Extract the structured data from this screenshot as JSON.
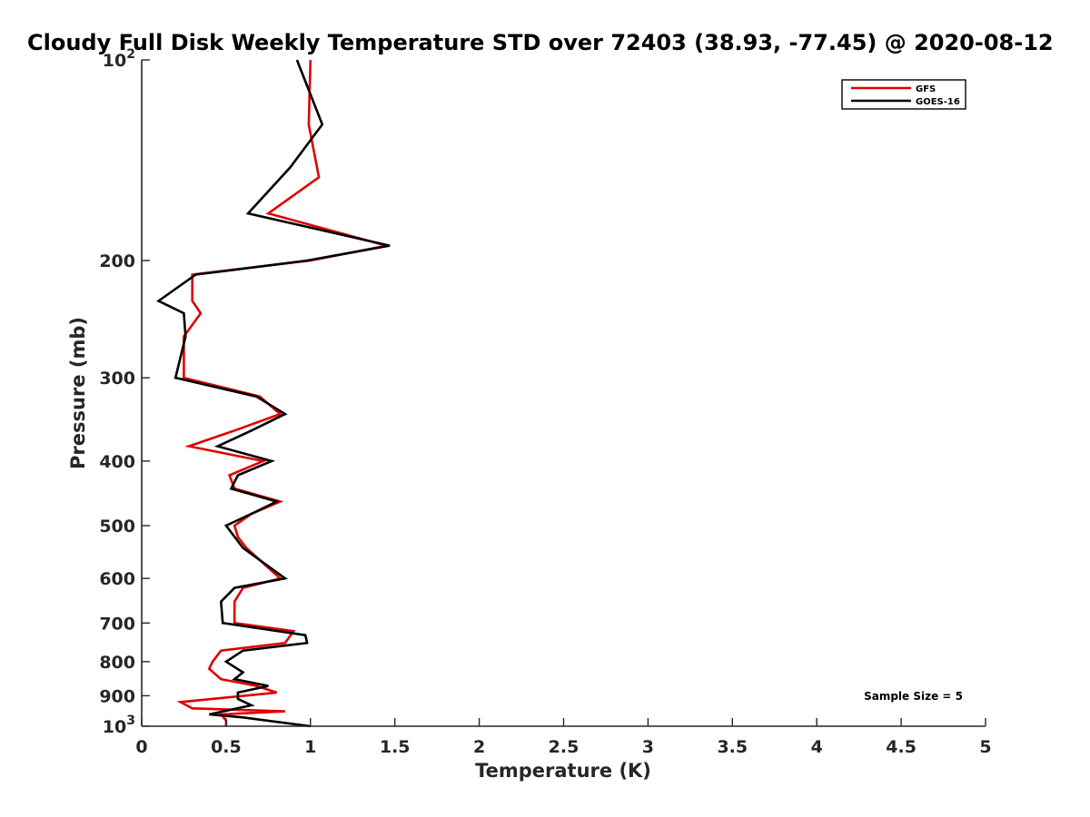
{
  "chart_data": {
    "type": "line",
    "title": "Cloudy Full Disk Weekly Temperature STD over 72403 (38.93, -77.45) @ 2020-08-12",
    "xlabel": "Temperature (K)",
    "ylabel": "Pressure (mb)",
    "xlim": [
      0,
      5
    ],
    "ylim": [
      100,
      1000
    ],
    "y_scale": "log",
    "y_reversed": true,
    "x_ticks": [
      0,
      0.5,
      1,
      1.5,
      2,
      2.5,
      3,
      3.5,
      4,
      4.5,
      5
    ],
    "x_tick_labels": [
      "0",
      "0.5",
      "1",
      "1.5",
      "2",
      "2.5",
      "3",
      "3.5",
      "4",
      "4.5",
      "5"
    ],
    "y_ticks": [
      100,
      200,
      300,
      400,
      500,
      600,
      700,
      800,
      900,
      1000
    ],
    "y_tick_labels": [
      "10^2",
      "200",
      "300",
      "400",
      "500",
      "600",
      "700",
      "800",
      "900",
      "10^3"
    ],
    "legend_position": "top-right",
    "annotation": "Sample Size = 5",
    "series": [
      {
        "name": "GFS",
        "color": "#e00000",
        "points": [
          [
            1.0,
            100
          ],
          [
            0.99,
            125
          ],
          [
            1.05,
            150
          ],
          [
            0.75,
            170
          ],
          [
            1.45,
            190
          ],
          [
            1.0,
            200
          ],
          [
            0.3,
            210
          ],
          [
            0.3,
            230
          ],
          [
            0.35,
            240
          ],
          [
            0.25,
            260
          ],
          [
            0.25,
            300
          ],
          [
            0.7,
            320
          ],
          [
            0.82,
            340
          ],
          [
            0.55,
            360
          ],
          [
            0.28,
            380
          ],
          [
            0.72,
            400
          ],
          [
            0.52,
            420
          ],
          [
            0.55,
            440
          ],
          [
            0.82,
            460
          ],
          [
            0.65,
            480
          ],
          [
            0.55,
            500
          ],
          [
            0.57,
            520
          ],
          [
            0.62,
            540
          ],
          [
            0.82,
            600
          ],
          [
            0.6,
            620
          ],
          [
            0.55,
            650
          ],
          [
            0.55,
            700
          ],
          [
            0.9,
            720
          ],
          [
            0.85,
            750
          ],
          [
            0.47,
            770
          ],
          [
            0.42,
            800
          ],
          [
            0.4,
            820
          ],
          [
            0.47,
            850
          ],
          [
            0.68,
            870
          ],
          [
            0.8,
            890
          ],
          [
            0.23,
            920
          ],
          [
            0.3,
            940
          ],
          [
            0.85,
            950
          ],
          [
            0.47,
            960
          ],
          [
            0.5,
            980
          ],
          [
            0.5,
            1000
          ]
        ]
      },
      {
        "name": "GOES-16",
        "color": "#000000",
        "points": [
          [
            0.92,
            100
          ],
          [
            1.07,
            125
          ],
          [
            0.88,
            145
          ],
          [
            0.63,
            170
          ],
          [
            1.47,
            190
          ],
          [
            0.98,
            200
          ],
          [
            0.32,
            210
          ],
          [
            0.1,
            230
          ],
          [
            0.25,
            240
          ],
          [
            0.26,
            260
          ],
          [
            0.2,
            300
          ],
          [
            0.68,
            320
          ],
          [
            0.85,
            340
          ],
          [
            0.65,
            360
          ],
          [
            0.45,
            380
          ],
          [
            0.77,
            400
          ],
          [
            0.57,
            420
          ],
          [
            0.53,
            440
          ],
          [
            0.8,
            460
          ],
          [
            0.65,
            480
          ],
          [
            0.5,
            500
          ],
          [
            0.6,
            540
          ],
          [
            0.85,
            600
          ],
          [
            0.55,
            620
          ],
          [
            0.47,
            650
          ],
          [
            0.48,
            700
          ],
          [
            0.97,
            730
          ],
          [
            0.98,
            750
          ],
          [
            0.6,
            770
          ],
          [
            0.5,
            800
          ],
          [
            0.6,
            830
          ],
          [
            0.55,
            850
          ],
          [
            0.75,
            870
          ],
          [
            0.57,
            890
          ],
          [
            0.57,
            910
          ],
          [
            0.65,
            930
          ],
          [
            0.4,
            960
          ],
          [
            0.6,
            970
          ],
          [
            0.8,
            985
          ],
          [
            1.0,
            1000
          ]
        ]
      }
    ]
  }
}
